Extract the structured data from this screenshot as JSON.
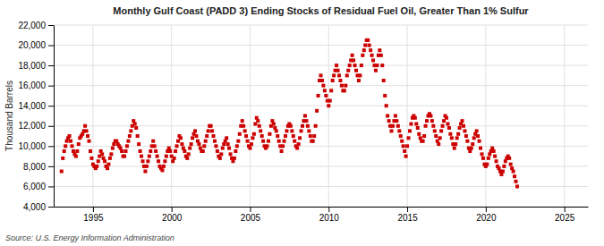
{
  "chart_data": {
    "type": "scatter",
    "title": "Monthly Gulf Coast (PADD 3) Ending Stocks of Residual Fuel Oil, Greater Than 1% Sulfur",
    "ylabel": "Thousand Barrels",
    "source": "Source: U.S. Energy Information Administration",
    "color": "#cc0000",
    "marker": "square",
    "grid": true,
    "xlim": [
      1992.5,
      2026.5
    ],
    "xticks": [
      1995,
      2000,
      2005,
      2010,
      2015,
      2020,
      2025
    ],
    "ylim": [
      4000,
      22000
    ],
    "yticks": [
      {
        "value": 4000,
        "label": "4,000"
      },
      {
        "value": 6000,
        "label": "6,000"
      },
      {
        "value": 8000,
        "label": "8,000"
      },
      {
        "value": 10000,
        "label": "10,000"
      },
      {
        "value": 12000,
        "label": "12,000"
      },
      {
        "value": 14000,
        "label": "14,000"
      },
      {
        "value": 16000,
        "label": "16,000"
      },
      {
        "value": 18000,
        "label": "18,000"
      },
      {
        "value": 20000,
        "label": "20,000"
      },
      {
        "value": 22000,
        "label": "22,000"
      }
    ],
    "x": [
      1993,
      1993.0833333333333,
      1993.1666666666667,
      1993.25,
      1993.3333333333333,
      1993.4166666666667,
      1993.5,
      1993.5833333333333,
      1993.6666666666667,
      1993.75,
      1993.8333333333333,
      1993.9166666666667,
      1994,
      1994.0833333333333,
      1994.1666666666667,
      1994.25,
      1994.3333333333333,
      1994.4166666666667,
      1994.5,
      1994.5833333333333,
      1994.6666666666667,
      1994.75,
      1994.8333333333333,
      1994.9166666666667,
      1995,
      1995.0833333333333,
      1995.1666666666667,
      1995.25,
      1995.3333333333333,
      1995.4166666666667,
      1995.5,
      1995.5833333333333,
      1995.6666666666667,
      1995.75,
      1995.8333333333333,
      1995.9166666666667,
      1996,
      1996.0833333333333,
      1996.1666666666667,
      1996.25,
      1996.3333333333333,
      1996.4166666666667,
      1996.5,
      1996.5833333333333,
      1996.6666666666667,
      1996.75,
      1996.8333333333333,
      1996.9166666666667,
      1997,
      1997.0833333333333,
      1997.1666666666667,
      1997.25,
      1997.3333333333333,
      1997.4166666666667,
      1997.5,
      1997.5833333333333,
      1997.6666666666667,
      1997.75,
      1997.8333333333333,
      1997.9166666666667,
      1998,
      1998.0833333333333,
      1998.1666666666667,
      1998.25,
      1998.3333333333333,
      1998.4166666666667,
      1998.5,
      1998.5833333333333,
      1998.6666666666667,
      1998.75,
      1998.8333333333333,
      1998.9166666666667,
      1999,
      1999.0833333333333,
      1999.1666666666667,
      1999.25,
      1999.3333333333333,
      1999.4166666666667,
      1999.5,
      1999.5833333333333,
      1999.6666666666667,
      1999.75,
      1999.8333333333333,
      1999.9166666666667,
      2000,
      2000.0833333333333,
      2000.1666666666667,
      2000.25,
      2000.3333333333333,
      2000.4166666666667,
      2000.5,
      2000.5833333333333,
      2000.6666666666667,
      2000.75,
      2000.8333333333333,
      2000.9166666666667,
      2001,
      2001.0833333333333,
      2001.1666666666667,
      2001.25,
      2001.3333333333333,
      2001.4166666666667,
      2001.5,
      2001.5833333333333,
      2001.6666666666667,
      2001.75,
      2001.8333333333333,
      2001.9166666666667,
      2002,
      2002.0833333333333,
      2002.1666666666667,
      2002.25,
      2002.3333333333333,
      2002.4166666666667,
      2002.5,
      2002.5833333333333,
      2002.6666666666667,
      2002.75,
      2002.8333333333333,
      2002.9166666666667,
      2003,
      2003.0833333333333,
      2003.1666666666667,
      2003.25,
      2003.3333333333333,
      2003.4166666666667,
      2003.5,
      2003.5833333333333,
      2003.6666666666667,
      2003.75,
      2003.8333333333333,
      2003.9166666666667,
      2004,
      2004.0833333333333,
      2004.1666666666667,
      2004.25,
      2004.3333333333333,
      2004.4166666666667,
      2004.5,
      2004.5833333333333,
      2004.6666666666667,
      2004.75,
      2004.8333333333333,
      2004.9166666666667,
      2005,
      2005.0833333333333,
      2005.1666666666667,
      2005.25,
      2005.3333333333333,
      2005.4166666666667,
      2005.5,
      2005.5833333333333,
      2005.6666666666667,
      2005.75,
      2005.8333333333333,
      2005.9166666666667,
      2006,
      2006.0833333333333,
      2006.1666666666667,
      2006.25,
      2006.3333333333333,
      2006.4166666666667,
      2006.5,
      2006.5833333333333,
      2006.6666666666667,
      2006.75,
      2006.8333333333333,
      2006.9166666666667,
      2007,
      2007.0833333333333,
      2007.1666666666667,
      2007.25,
      2007.3333333333333,
      2007.4166666666667,
      2007.5,
      2007.5833333333333,
      2007.6666666666667,
      2007.75,
      2007.8333333333333,
      2007.9166666666667,
      2008,
      2008.0833333333333,
      2008.1666666666667,
      2008.25,
      2008.3333333333333,
      2008.4166666666667,
      2008.5,
      2008.5833333333333,
      2008.6666666666667,
      2008.75,
      2008.8333333333333,
      2008.9166666666667,
      2009,
      2009.0833333333333,
      2009.1666666666667,
      2009.25,
      2009.3333333333333,
      2009.4166666666667,
      2009.5,
      2009.5833333333333,
      2009.6666666666667,
      2009.75,
      2009.8333333333333,
      2009.9166666666667,
      2010,
      2010.0833333333333,
      2010.1666666666667,
      2010.25,
      2010.3333333333333,
      2010.4166666666667,
      2010.5,
      2010.5833333333333,
      2010.6666666666667,
      2010.75,
      2010.8333333333333,
      2010.9166666666667,
      2011,
      2011.0833333333333,
      2011.1666666666667,
      2011.25,
      2011.3333333333333,
      2011.4166666666667,
      2011.5,
      2011.5833333333333,
      2011.6666666666667,
      2011.75,
      2011.8333333333333,
      2011.9166666666667,
      2012,
      2012.0833333333333,
      2012.1666666666667,
      2012.25,
      2012.3333333333333,
      2012.4166666666667,
      2012.5,
      2012.5833333333333,
      2012.6666666666667,
      2012.75,
      2012.8333333333333,
      2012.9166666666667,
      2013,
      2013.0833333333333,
      2013.1666666666667,
      2013.25,
      2013.3333333333333,
      2013.4166666666667,
      2013.5,
      2013.5833333333333,
      2013.6666666666667,
      2013.75,
      2013.8333333333333,
      2013.9166666666667,
      2014,
      2014.0833333333333,
      2014.1666666666667,
      2014.25,
      2014.3333333333333,
      2014.4166666666667,
      2014.5,
      2014.5833333333333,
      2014.6666666666667,
      2014.75,
      2014.8333333333333,
      2014.9166666666667,
      2015,
      2015.0833333333333,
      2015.1666666666667,
      2015.25,
      2015.3333333333333,
      2015.4166666666667,
      2015.5,
      2015.5833333333333,
      2015.6666666666667,
      2015.75,
      2015.8333333333333,
      2015.9166666666667,
      2016,
      2016.0833333333333,
      2016.1666666666667,
      2016.25,
      2016.3333333333333,
      2016.4166666666667,
      2016.5,
      2016.5833333333333,
      2016.6666666666667,
      2016.75,
      2016.8333333333333,
      2016.9166666666667,
      2017,
      2017.0833333333333,
      2017.1666666666667,
      2017.25,
      2017.3333333333333,
      2017.4166666666667,
      2017.5,
      2017.5833333333333,
      2017.6666666666667,
      2017.75,
      2017.8333333333333,
      2017.9166666666667,
      2018,
      2018.0833333333333,
      2018.1666666666667,
      2018.25,
      2018.3333333333333,
      2018.4166666666667,
      2018.5,
      2018.5833333333333,
      2018.6666666666667,
      2018.75,
      2018.8333333333333,
      2018.9166666666667,
      2019,
      2019.0833333333333,
      2019.1666666666667,
      2019.25,
      2019.3333333333333,
      2019.4166666666667,
      2019.5,
      2019.5833333333333,
      2019.6666666666667,
      2019.75,
      2019.8333333333333,
      2019.9166666666667,
      2020,
      2020.0833333333333,
      2020.1666666666667,
      2020.25,
      2020.3333333333333,
      2020.4166666666667,
      2020.5,
      2020.5833333333333,
      2020.6666666666667,
      2020.75,
      2020.8333333333333,
      2020.9166666666667,
      2021,
      2021.0833333333333,
      2021.1666666666667,
      2021.25,
      2021.3333333333333,
      2021.4166666666667,
      2021.5,
      2021.5833333333333,
      2021.6666666666667,
      2021.75,
      2021.8333333333333,
      2021.9166666666667,
      2022
    ],
    "values": [
      7500,
      8800,
      9500,
      10000,
      10500,
      10800,
      11000,
      10500,
      10000,
      9500,
      9200,
      9000,
      9500,
      10200,
      10800,
      11000,
      11200,
      11500,
      12000,
      11500,
      11000,
      10500,
      9500,
      8800,
      8200,
      8000,
      7800,
      8000,
      8500,
      9000,
      9500,
      9200,
      8800,
      8500,
      8000,
      7800,
      8200,
      8800,
      9200,
      9800,
      10200,
      10500,
      10500,
      10200,
      10000,
      9800,
      9500,
      9000,
      9000,
      9500,
      10000,
      10500,
      11000,
      11500,
      12000,
      12500,
      12200,
      11800,
      11000,
      10200,
      9500,
      9000,
      8500,
      8000,
      7500,
      8000,
      8500,
      9000,
      9500,
      10000,
      10500,
      10000,
      9500,
      9000,
      8500,
      8000,
      7800,
      7600,
      8000,
      8500,
      9000,
      9500,
      9800,
      9500,
      9000,
      8500,
      8800,
      9500,
      10000,
      10500,
      11000,
      10800,
      10200,
      9800,
      9500,
      9000,
      8800,
      9200,
      9800,
      10200,
      10800,
      11200,
      11500,
      11000,
      10500,
      10200,
      9800,
      9500,
      9500,
      10000,
      10500,
      11000,
      11500,
      12000,
      12000,
      11500,
      11000,
      10500,
      10000,
      9500,
      9000,
      8800,
      9200,
      9800,
      10200,
      10500,
      10800,
      10200,
      9800,
      9200,
      8800,
      8500,
      8800,
      9500,
      10000,
      10500,
      11200,
      12000,
      12500,
      12000,
      11500,
      11000,
      10500,
      10000,
      9800,
      10200,
      10800,
      11200,
      12200,
      12800,
      12500,
      12000,
      11500,
      11000,
      10500,
      10000,
      9800,
      10000,
      10500,
      11200,
      12000,
      12500,
      12200,
      11800,
      11500,
      11000,
      10500,
      10000,
      9500,
      10000,
      10500,
      11000,
      11500,
      12000,
      12200,
      12000,
      11500,
      11000,
      10500,
      10000,
      9800,
      10200,
      10800,
      11500,
      12000,
      12500,
      13000,
      12500,
      12000,
      11500,
      11000,
      10500,
      10500,
      11000,
      12000,
      13500,
      15000,
      16500,
      17000,
      16500,
      16000,
      15500,
      15000,
      14500,
      14000,
      14500,
      15500,
      16500,
      17000,
      17500,
      18000,
      17500,
      17000,
      16500,
      16000,
      15500,
      15500,
      16000,
      17000,
      17500,
      18000,
      18500,
      19000,
      18500,
      18000,
      17500,
      17000,
      16500,
      17000,
      18000,
      19000,
      19500,
      20000,
      20500,
      20500,
      20000,
      19500,
      19000,
      18500,
      18000,
      17500,
      18000,
      19000,
      19500,
      19000,
      18000,
      16500,
      15000,
      14000,
      13000,
      12500,
      12000,
      11500,
      12000,
      12500,
      13000,
      12500,
      12000,
      11500,
      11000,
      10500,
      10000,
      9500,
      9000,
      10000,
      10800,
      11500,
      12200,
      12800,
      13000,
      12800,
      12200,
      11800,
      11200,
      10800,
      10500,
      10500,
      11000,
      12000,
      12500,
      13000,
      13200,
      13000,
      12500,
      12000,
      11500,
      11000,
      10500,
      10200,
      10800,
      11500,
      12000,
      12500,
      13000,
      12800,
      12200,
      11800,
      11200,
      10800,
      10200,
      9800,
      10200,
      10800,
      11200,
      11800,
      12200,
      12500,
      12000,
      11500,
      11000,
      10500,
      9800,
      9500,
      9800,
      10200,
      10800,
      11200,
      11500,
      11000,
      10500,
      9800,
      9200,
      8800,
      8200,
      8000,
      8200,
      8800,
      9200,
      9500,
      9800,
      9500,
      9000,
      8500,
      8000,
      7800,
      7500,
      7200,
      7500,
      8000,
      8500,
      8800,
      9000,
      8800,
      8200,
      7800,
      7500,
      7000,
      6500,
      6000
    ]
  }
}
